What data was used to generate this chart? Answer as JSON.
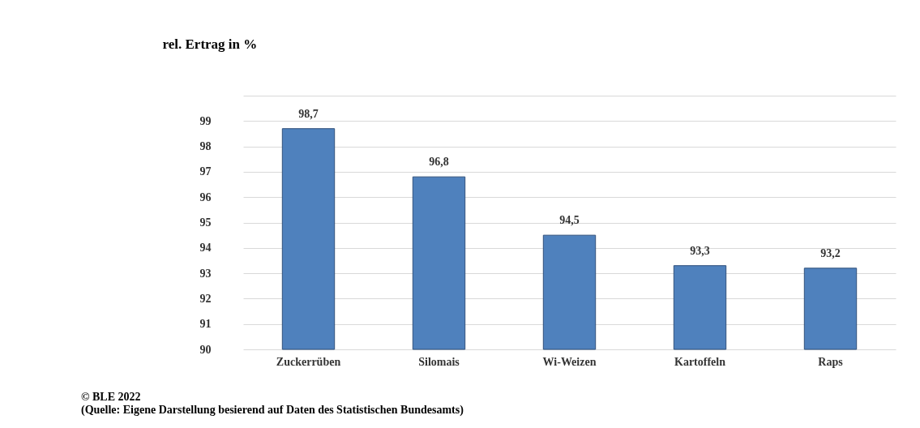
{
  "chart_data": {
    "type": "bar",
    "ylabel": "rel. Ertrag in %",
    "categories": [
      "Zuckerrüben",
      "Silomais",
      "Wi-Weizen",
      "Kartoffeln",
      "Raps"
    ],
    "values": [
      98.7,
      96.8,
      94.5,
      93.3,
      93.2
    ],
    "value_labels": [
      "98,7",
      "96,8",
      "94,5",
      "93,3",
      "93,2"
    ],
    "color": "#4f81bd",
    "ylim": [
      90,
      100
    ],
    "yticks": [
      90,
      91,
      92,
      93,
      94,
      95,
      96,
      97,
      98,
      99,
      {
        "value": 100,
        "label": null
      }
    ],
    "grid": "y",
    "annotations": [
      "© BLE  2022",
      "(Quelle: Eigene Darstellung besierend auf Daten des Statistischen Bundesamts)"
    ]
  }
}
